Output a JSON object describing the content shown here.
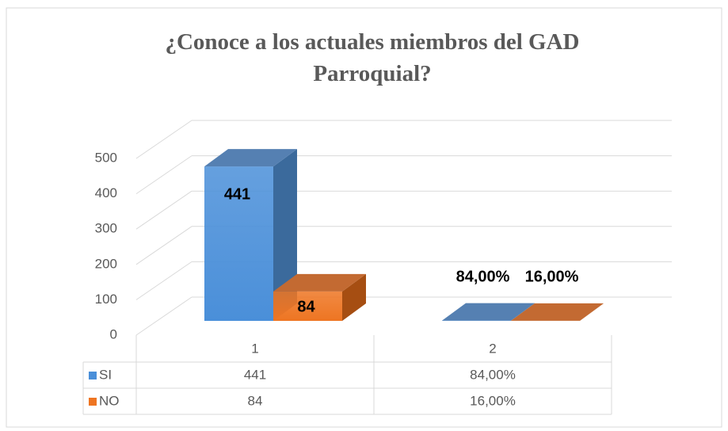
{
  "chart_data": {
    "type": "bar3d",
    "title": "¿Conoce a los actuales miembros del GAD Parroquial?",
    "categories": [
      "1",
      "2"
    ],
    "series": [
      {
        "name": "SI",
        "color": "#4a8fd9",
        "values": [
          441,
          0.84
        ],
        "value_labels": [
          "441",
          "84,00%"
        ]
      },
      {
        "name": "NO",
        "color": "#ee7522",
        "values": [
          84,
          0.16
        ],
        "value_labels": [
          "84",
          "16,00%"
        ]
      }
    ],
    "ylim": [
      0,
      500
    ],
    "yticks": [
      0,
      100,
      200,
      300,
      400,
      500
    ],
    "grid": true,
    "data_table": true
  }
}
